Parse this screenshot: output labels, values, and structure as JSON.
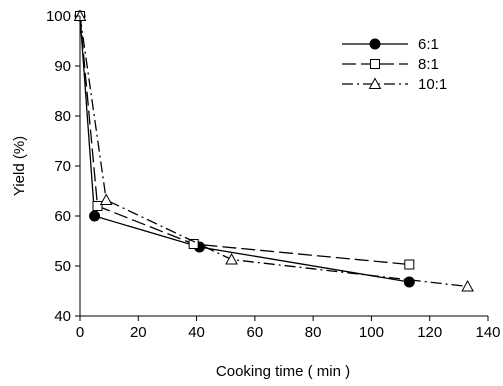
{
  "chart_data": {
    "type": "line",
    "xlabel": "Cooking time ( min )",
    "ylabel": "Yield (%)",
    "xlim": [
      0,
      140
    ],
    "ylim": [
      40,
      100
    ],
    "xticks": [
      0,
      20,
      40,
      60,
      80,
      100,
      120,
      140
    ],
    "yticks": [
      40,
      50,
      60,
      70,
      80,
      90,
      100
    ],
    "grid": false,
    "legend_position": "top-right",
    "series": [
      {
        "name": "6:1",
        "marker": "filled-circle",
        "line_style": "solid",
        "color": "#000000",
        "x": [
          0,
          5,
          41,
          113
        ],
        "y": [
          100,
          60,
          53.8,
          46.8
        ]
      },
      {
        "name": "8:1",
        "marker": "open-square",
        "line_style": "dashed",
        "color": "#000000",
        "x": [
          0,
          6,
          39,
          113
        ],
        "y": [
          100,
          62,
          54.4,
          50.3
        ]
      },
      {
        "name": "10:1",
        "marker": "open-triangle",
        "line_style": "dash-dot",
        "color": "#000000",
        "x": [
          0,
          9,
          52,
          133
        ],
        "y": [
          100,
          63.2,
          51.3,
          45.9
        ]
      }
    ]
  }
}
